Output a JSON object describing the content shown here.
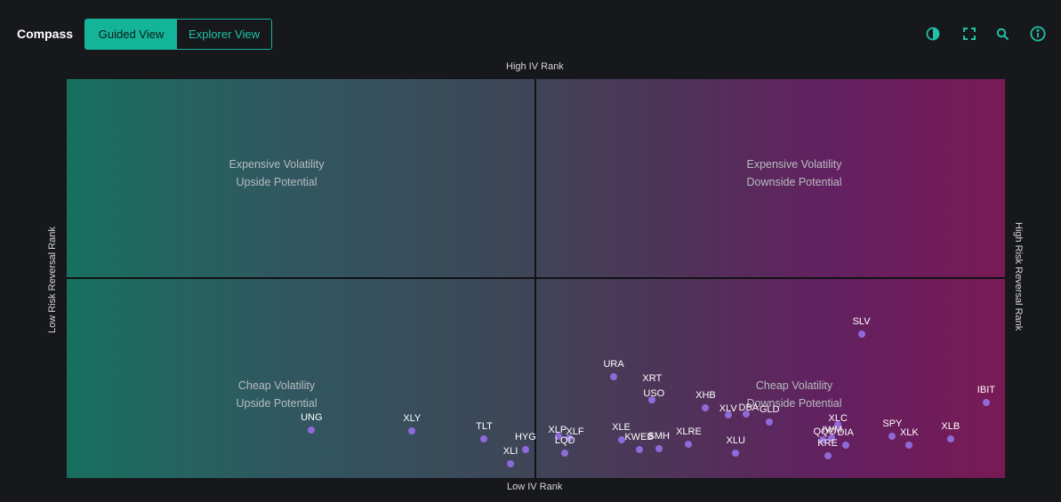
{
  "app": {
    "title": "Compass"
  },
  "view_toggle": {
    "guided": "Guided View",
    "explorer": "Explorer View",
    "selected": "Guided View"
  },
  "toolbar": {
    "icons": [
      "contrast-icon",
      "fullscreen-icon",
      "zoom-icon",
      "info-icon"
    ],
    "accent": "#1fc2a6"
  },
  "axes": {
    "top": "High IV Rank",
    "bottom": "Low IV Rank",
    "left": "Low Risk Reversal Rank",
    "right": "High Risk Reversal Rank"
  },
  "quadrants": {
    "top_left": {
      "line1": "Expensive Volatility",
      "line2": "Upside Potential"
    },
    "top_right": {
      "line1": "Expensive Volatility",
      "line2": "Downside Potential"
    },
    "bottom_left": {
      "line1": "Cheap Volatility",
      "line2": "Upside Potential"
    },
    "bottom_right": {
      "line1": "Cheap Volatility",
      "line2": "Downside Potential"
    }
  },
  "chart_data": {
    "type": "scatter",
    "x_axis": "Risk Reversal Rank",
    "y_axis": "IV Rank",
    "point_color": "#8f6ad9",
    "points": [
      {
        "label": "UNG",
        "x": 26.1,
        "y": 12.1
      },
      {
        "label": "XLY",
        "x": 36.8,
        "y": 11.8
      },
      {
        "label": "TLT",
        "x": 44.5,
        "y": 9.8
      },
      {
        "label": "XLI",
        "x": 47.3,
        "y": 3.6
      },
      {
        "label": "HYG",
        "x": 48.9,
        "y": 7.2
      },
      {
        "label": "XLP",
        "x": 52.4,
        "y": 10.4
      },
      {
        "label": "XLF",
        "x": 53.6,
        "y": 10.1
      },
      {
        "label": "LQD",
        "x": 53.1,
        "y": 6.3
      },
      {
        "label": "URA",
        "x": 58.3,
        "y": 25.4
      },
      {
        "label": "XLE",
        "x": 59.1,
        "y": 9.5
      },
      {
        "label": "KWEB",
        "x": 61.0,
        "y": 7.2
      },
      {
        "label": "SMH",
        "x": 63.1,
        "y": 7.4
      },
      {
        "label": "XRT",
        "x": 62.4,
        "y": 19.6
      },
      {
        "label": "USO",
        "x": 62.4,
        "y": 19.6
      },
      {
        "label": "XLRE",
        "x": 66.3,
        "y": 8.4
      },
      {
        "label": "XHB",
        "x": 68.1,
        "y": 17.6
      },
      {
        "label": "XLU",
        "x": 71.3,
        "y": 6.3
      },
      {
        "label": "XLV",
        "x": 70.5,
        "y": 15.8
      },
      {
        "label": "DBA",
        "x": 72.4,
        "y": 16.0
      },
      {
        "label": "GLD",
        "x": 74.9,
        "y": 14.0
      },
      {
        "label": "SLV",
        "x": 84.7,
        "y": 36.1
      },
      {
        "label": "XLC",
        "x": 82.2,
        "y": 13.4
      },
      {
        "label": "QQQ",
        "x": 80.6,
        "y": 9.6
      },
      {
        "label": "IWM",
        "x": 81.5,
        "y": 10.1
      },
      {
        "label": "DIA",
        "x": 83.0,
        "y": 8.2
      },
      {
        "label": "KRE",
        "x": 81.1,
        "y": 5.5
      },
      {
        "label": "SPY",
        "x": 88.0,
        "y": 10.4
      },
      {
        "label": "XLK",
        "x": 89.8,
        "y": 8.2
      },
      {
        "label": "XLB",
        "x": 94.2,
        "y": 9.8
      },
      {
        "label": "IBIT",
        "x": 98.0,
        "y": 18.9
      }
    ]
  }
}
